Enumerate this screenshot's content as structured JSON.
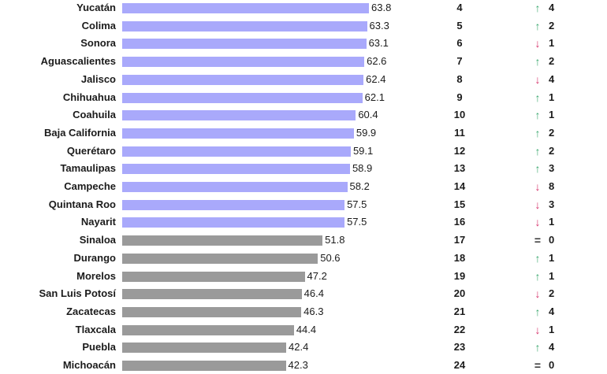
{
  "colors": {
    "bar_top": "#a9a9fb",
    "bar_bottom": "#9a9a9a",
    "up": "#3aa86e",
    "down": "#d6336c",
    "equal": "#333333"
  },
  "arrow_glyphs": {
    "up": "↑",
    "down": "↓",
    "equal": "="
  },
  "chart_data": {
    "type": "bar",
    "orientation": "horizontal",
    "categories": [
      "Yucatán",
      "Colima",
      "Sonora",
      "Aguascalientes",
      "Jalisco",
      "Chihuahua",
      "Coahuila",
      "Baja California",
      "Querétaro",
      "Tamaulipas",
      "Campeche",
      "Quintana Roo",
      "Nayarit",
      "Sinaloa",
      "Durango",
      "Morelos",
      "San Luis Potosí",
      "Zacatecas",
      "Tlaxcala",
      "Puebla",
      "Michoacán"
    ],
    "values": [
      63.8,
      63.3,
      63.1,
      62.6,
      62.4,
      62.1,
      60.4,
      59.9,
      59.1,
      58.9,
      58.2,
      57.5,
      57.5,
      51.8,
      50.6,
      47.2,
      46.4,
      46.3,
      44.4,
      42.4,
      42.3
    ],
    "value_labels": [
      "63.8",
      "63.3",
      "63.1",
      "62.6",
      "62.4",
      "62.1",
      "60.4",
      "59.9",
      "59.1",
      "58.9",
      "58.2",
      "57.5",
      "57.5",
      "51.8",
      "50.6",
      "47.2",
      "46.4",
      "46.3",
      "44.4",
      "42.4",
      "42.3"
    ],
    "ranks": [
      "4",
      "5",
      "6",
      "7",
      "8",
      "9",
      "10",
      "11",
      "12",
      "13",
      "14",
      "15",
      "16",
      "17",
      "18",
      "19",
      "20",
      "21",
      "22",
      "23",
      "24"
    ],
    "rank_change_direction": [
      "up",
      "up",
      "down",
      "up",
      "down",
      "up",
      "up",
      "up",
      "up",
      "up",
      "down",
      "down",
      "down",
      "equal",
      "up",
      "up",
      "down",
      "up",
      "down",
      "up",
      "equal"
    ],
    "rank_change": [
      "4",
      "2",
      "1",
      "2",
      "4",
      "1",
      "1",
      "2",
      "2",
      "3",
      "8",
      "3",
      "1",
      "0",
      "1",
      "1",
      "2",
      "4",
      "1",
      "4",
      "0"
    ],
    "bar_color_group": [
      "top",
      "top",
      "top",
      "top",
      "top",
      "top",
      "top",
      "top",
      "top",
      "top",
      "top",
      "top",
      "top",
      "bottom",
      "bottom",
      "bottom",
      "bottom",
      "bottom",
      "bottom",
      "bottom",
      "bottom"
    ],
    "xlim": [
      0,
      80
    ],
    "grid": false,
    "legend": "none"
  }
}
